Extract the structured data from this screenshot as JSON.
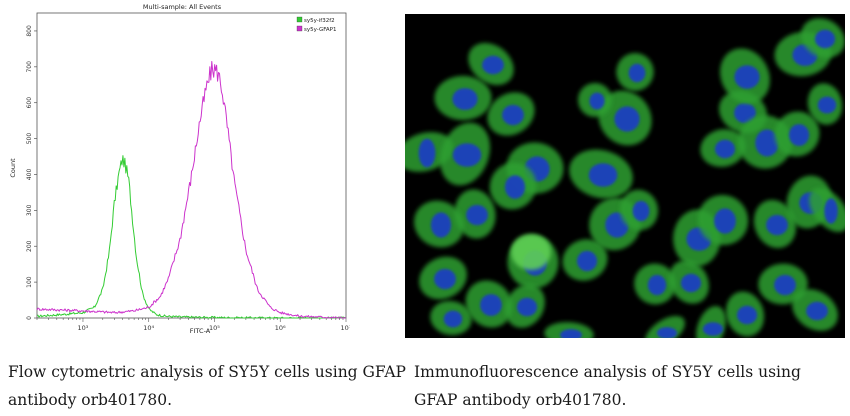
{
  "chart_data": {
    "type": "line",
    "title": "Multi-sample: All Events",
    "xlabel": "FITC-A",
    "ylabel": "Count",
    "xscale": "log",
    "xlim": [
      200,
      10000000
    ],
    "ylim": [
      0,
      850
    ],
    "xticks": [
      {
        "value": 1000,
        "label": "10³"
      },
      {
        "value": 10000,
        "label": "10⁴"
      },
      {
        "value": 100000,
        "label": "10⁵"
      },
      {
        "value": 1000000,
        "label": "10⁶"
      },
      {
        "value": 10000000,
        "label": "10⁷"
      }
    ],
    "yticks": [
      0,
      100,
      200,
      300,
      400,
      500,
      600,
      700,
      800
    ],
    "legend_position": "top-right",
    "grid": false,
    "series": [
      {
        "name": "sy5y-if32f2",
        "color": "#33cc33",
        "x": [
          200,
          500,
          1000,
          1500,
          2000,
          2500,
          3000,
          3500,
          4000,
          4500,
          5000,
          5500,
          6500,
          8000,
          10000,
          13000,
          18000,
          30000,
          60000,
          150000,
          1000000
        ],
        "y": [
          5,
          10,
          15,
          30,
          80,
          180,
          320,
          400,
          445,
          420,
          380,
          300,
          170,
          70,
          25,
          10,
          5,
          3,
          2,
          1,
          0
        ]
      },
      {
        "name": "sy5y-GFAP1",
        "color": "#cc33cc",
        "x": [
          200,
          1000,
          3000,
          6000,
          10000,
          15000,
          20000,
          30000,
          45000,
          60000,
          75000,
          90000,
          100000,
          115000,
          130000,
          160000,
          200000,
          300000,
          450000,
          700000,
          1000000,
          2000000,
          10000000
        ],
        "y": [
          25,
          20,
          15,
          20,
          30,
          60,
          110,
          220,
          400,
          550,
          640,
          690,
          695,
          680,
          640,
          520,
          380,
          190,
          80,
          30,
          15,
          5,
          0
        ]
      }
    ]
  },
  "if_image": {
    "background": "#000000",
    "cell_color": "#2fa033",
    "nucleus_color": "#1a3fbf"
  },
  "captions": {
    "left": "Flow cytometric analysis of SY5Y cells using GFAP antibody orb401780.",
    "right": "Immunofluorescence analysis of SY5Y cells using GFAP antibody orb401780."
  }
}
